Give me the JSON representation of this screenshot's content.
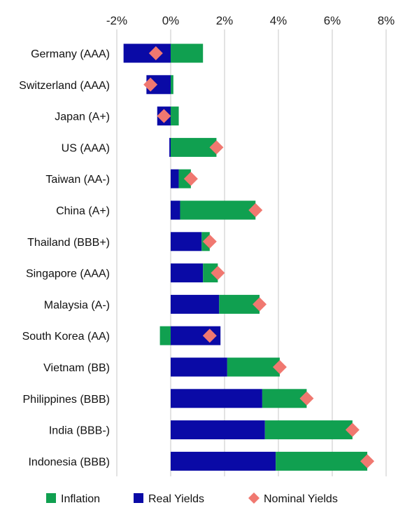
{
  "chart_data": {
    "type": "bar",
    "stacked": true,
    "orientation": "horizontal",
    "x_ticks": [
      "-2%",
      "0%",
      "2%",
      "4%",
      "6%",
      "8%"
    ],
    "xlim": [
      -2,
      8
    ],
    "grid": true,
    "legend_position": "bottom",
    "categories": [
      "Germany (AAA)",
      "Switzerland (AAA)",
      "Japan (A+)",
      "US (AAA)",
      "Taiwan (AA-)",
      "China (A+)",
      "Thailand (BBB+)",
      "Singapore (AAA)",
      "Malaysia (A-)",
      "South Korea (AA)",
      "Vietnam (BB)",
      "Philippines (BBB)",
      "India (BBB-)",
      "Indonesia (BBB)"
    ],
    "series": [
      {
        "name": "Real Yields",
        "kind": "bar",
        "color": "#0a0aa6",
        "values": [
          -1.75,
          -0.9,
          -0.5,
          -0.05,
          0.3,
          0.35,
          1.15,
          1.2,
          1.8,
          1.85,
          2.1,
          3.4,
          3.5,
          3.9
        ]
      },
      {
        "name": "Inflation",
        "kind": "bar",
        "color": "#10a050",
        "values": [
          1.2,
          0.1,
          0.3,
          1.7,
          0.45,
          2.8,
          0.3,
          0.55,
          1.5,
          -0.4,
          1.95,
          1.65,
          3.25,
          3.4
        ]
      },
      {
        "name": "Nominal Yields",
        "kind": "marker",
        "color": "#f07870",
        "values": [
          -0.55,
          -0.75,
          -0.25,
          1.7,
          0.75,
          3.15,
          1.45,
          1.75,
          3.3,
          1.45,
          4.05,
          5.05,
          6.75,
          7.3
        ]
      }
    ],
    "legend": [
      {
        "name": "Inflation",
        "shape": "square",
        "color": "#10a050"
      },
      {
        "name": "Real Yields",
        "shape": "square",
        "color": "#0a0aa6"
      },
      {
        "name": "Nominal Yields",
        "shape": "diamond",
        "color": "#f07870"
      }
    ]
  }
}
